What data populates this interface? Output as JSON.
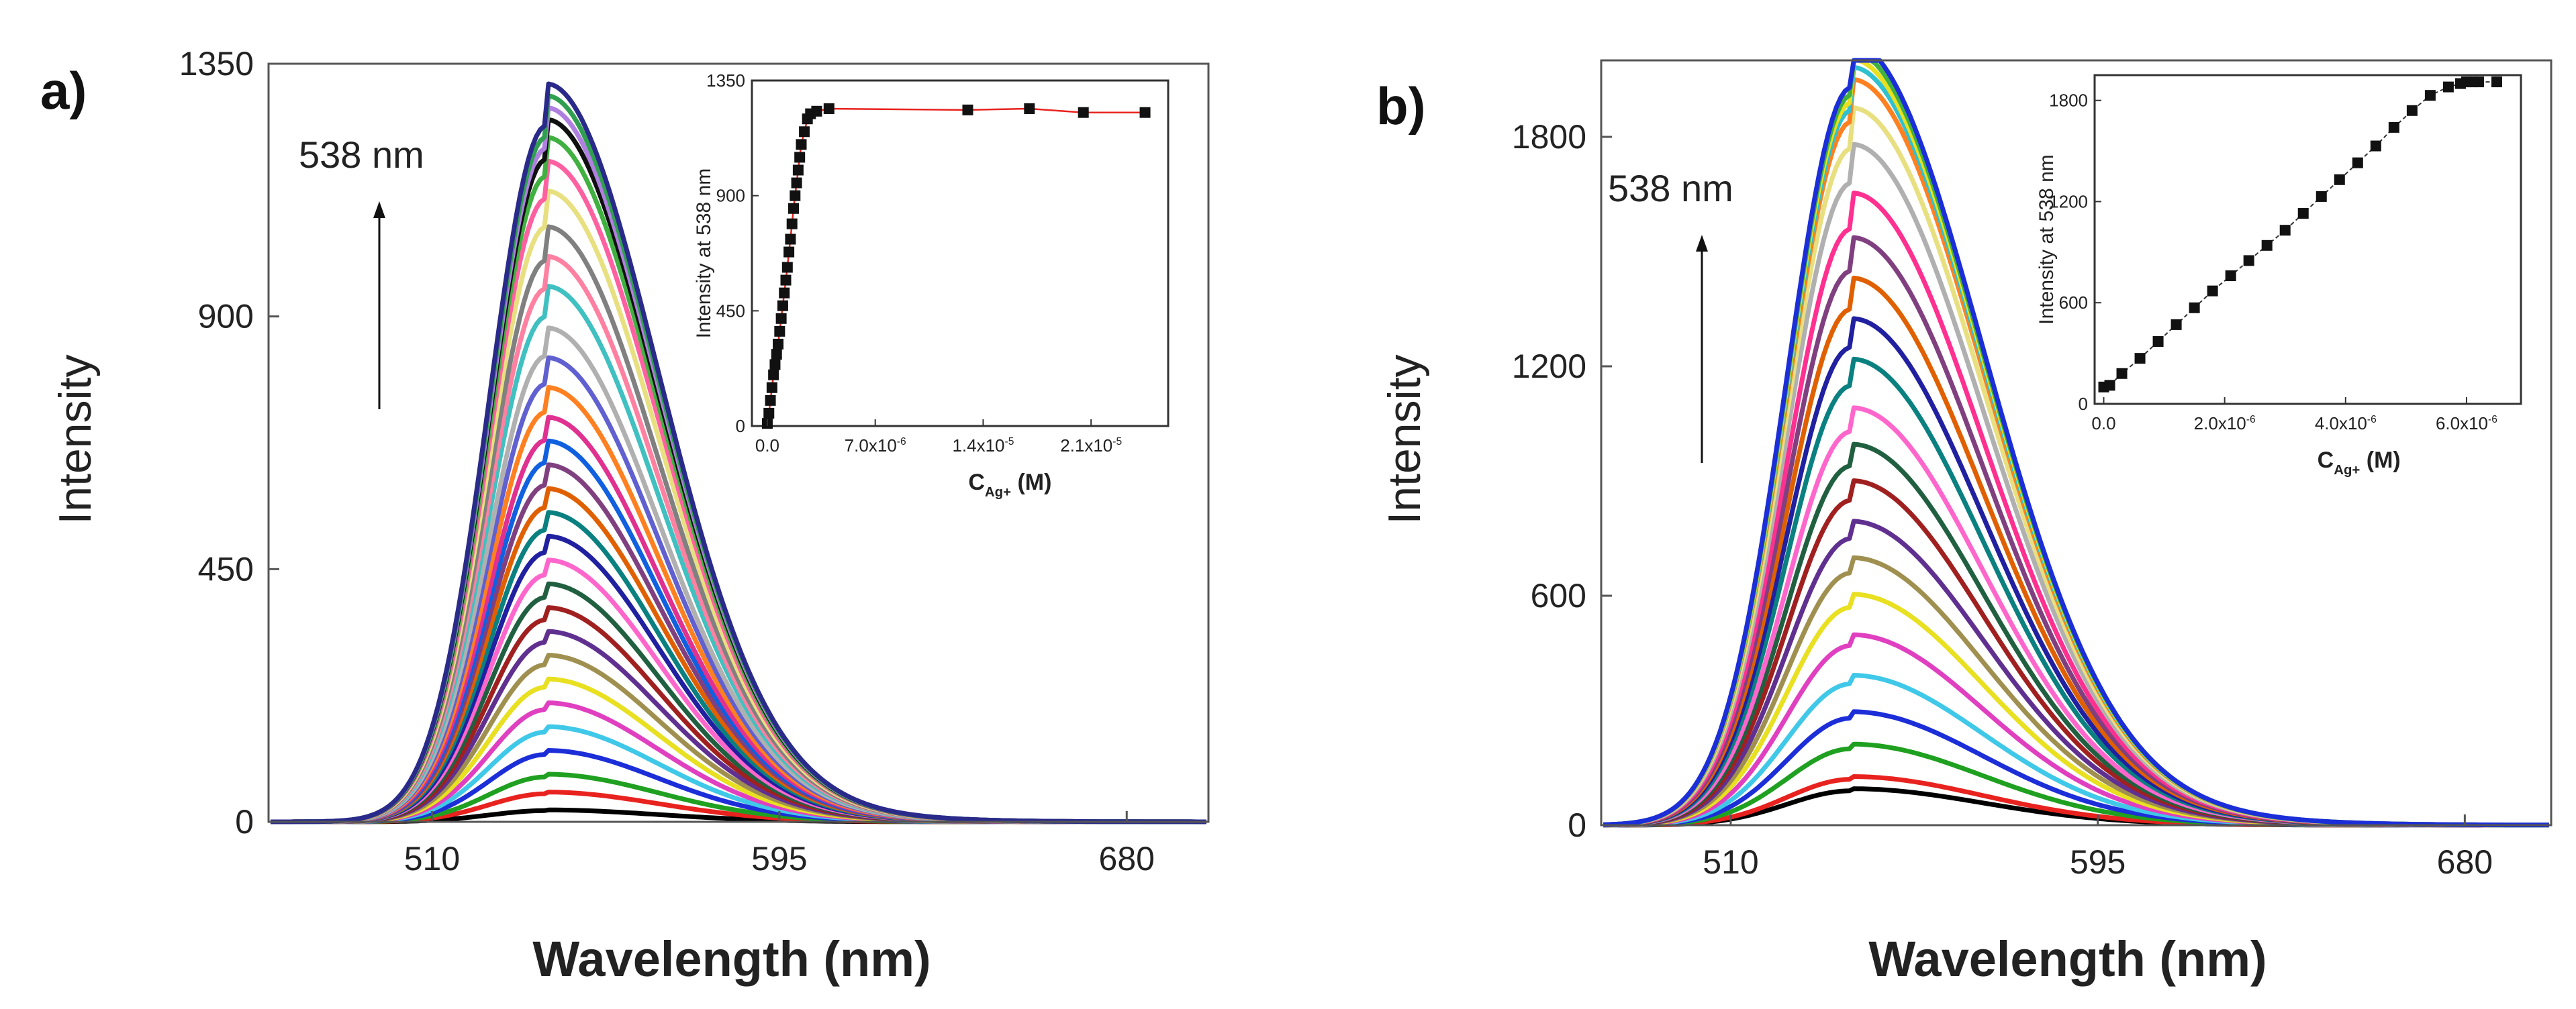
{
  "chart_data": [
    {
      "type": "line",
      "panel_label": "a)",
      "xlabel": "Wavelength (nm)",
      "ylabel": "Intensity",
      "xlim": [
        470,
        700
      ],
      "ylim": [
        0,
        1350
      ],
      "x_ticks": [
        "510",
        "595",
        "680"
      ],
      "y_ticks": [
        "0",
        "450",
        "900",
        "1350"
      ],
      "annotation": {
        "text": "538 nm",
        "arrow": "up"
      },
      "peak_wavelength": 538,
      "series_peak_intensities": [
        20,
        50,
        80,
        120,
        160,
        200,
        240,
        280,
        320,
        360,
        400,
        440,
        480,
        520,
        560,
        600,
        640,
        680,
        730,
        780,
        830,
        900,
        950,
        1000,
        1060,
        1110,
        1150,
        1180,
        1200,
        1220,
        1240
      ],
      "series_colors": [
        "#000000",
        "#e8231f",
        "#20a020",
        "#1c2ed8",
        "#40c8e8",
        "#e040c0",
        "#e8e020",
        "#a09050",
        "#603090",
        "#a02020",
        "#206040",
        "#ff66cc",
        "#2020a0",
        "#0a8080",
        "#e06000",
        "#804080",
        "#1060e0",
        "#e03090",
        "#ff8020",
        "#6060d0",
        "#b0b0b0",
        "#40c0c0",
        "#ff80a0",
        "#808080",
        "#e8e080",
        "#ff60a0",
        "#40b040",
        "#101010",
        "#b080e0",
        "#30a050",
        "#2a2a8a"
      ],
      "inset": {
        "type": "scatter",
        "xlabel": "C",
        "xlabel_subscript": "Ag+",
        "xlabel_unit": " (M)",
        "ylabel": "Intensity at 538 nm",
        "xlim": [
          -1e-06,
          2.6e-05
        ],
        "ylim": [
          0,
          1350
        ],
        "x_ticks": [
          {
            "value": 0,
            "label": "0.0"
          },
          {
            "value": 7e-06,
            "label": "7.0x10",
            "exp": "-6"
          },
          {
            "value": 1.4e-05,
            "label": "1.4x10",
            "exp": "-5"
          },
          {
            "value": 2.1e-05,
            "label": "2.1x10",
            "exp": "-5"
          }
        ],
        "y_ticks": [
          "0",
          "450",
          "900",
          "1350"
        ],
        "x": [
          0,
          1e-07,
          2e-07,
          3e-07,
          4e-07,
          5e-07,
          6e-07,
          7e-07,
          8e-07,
          9e-07,
          1e-06,
          1.1e-06,
          1.2e-06,
          1.3e-06,
          1.4e-06,
          1.5e-06,
          1.6e-06,
          1.7e-06,
          1.8e-06,
          1.9e-06,
          2e-06,
          2.1e-06,
          2.2e-06,
          2.4e-06,
          2.6e-06,
          2.8e-06,
          3.2e-06,
          4e-06,
          1.3e-05,
          1.7e-05,
          2.05e-05,
          2.45e-05
        ],
        "y": [
          10,
          50,
          100,
          150,
          200,
          240,
          280,
          320,
          370,
          420,
          470,
          520,
          570,
          620,
          680,
          730,
          790,
          850,
          900,
          950,
          1000,
          1050,
          1100,
          1150,
          1200,
          1220,
          1230,
          1240,
          1235,
          1240,
          1225,
          1225
        ],
        "line_color": "#e8231f"
      }
    },
    {
      "type": "line",
      "panel_label": "b)",
      "xlabel": "Wavelength (nm)",
      "ylabel": "Intensity",
      "xlim": [
        480,
        700
      ],
      "ylim": [
        0,
        2000
      ],
      "x_ticks": [
        "510",
        "595",
        "680"
      ],
      "y_ticks": [
        "0",
        "600",
        "1200",
        "1800"
      ],
      "annotation": {
        "text": "538 nm",
        "arrow": "up"
      },
      "peak_wavelength": 538,
      "series_peak_intensities": [
        90,
        120,
        200,
        280,
        370,
        470,
        570,
        660,
        750,
        850,
        940,
        1030,
        1150,
        1250,
        1350,
        1450,
        1560,
        1680,
        1770,
        1840,
        1870,
        1890,
        1910,
        1930
      ],
      "series_colors": [
        "#000000",
        "#e8231f",
        "#20a020",
        "#1c2ed8",
        "#40c8e8",
        "#e040c0",
        "#e8e020",
        "#a09050",
        "#603090",
        "#a02020",
        "#206040",
        "#ff66cc",
        "#0a8080",
        "#2020a0",
        "#e06000",
        "#804080",
        "#ff3090",
        "#b0b0b0",
        "#e8e080",
        "#ff8020",
        "#30c0d0",
        "#e8e020",
        "#40b040",
        "#1c2ed8"
      ],
      "inset": {
        "type": "scatter",
        "xlabel": "C",
        "xlabel_subscript": "Ag+",
        "xlabel_unit": " (M)",
        "ylabel": "Intensity at 538 nm",
        "xlim": [
          -1.5e-07,
          6.9e-06
        ],
        "ylim": [
          0,
          1950
        ],
        "x_ticks": [
          {
            "value": 0,
            "label": "0.0"
          },
          {
            "value": 2e-06,
            "label": "2.0x10",
            "exp": "-6"
          },
          {
            "value": 4e-06,
            "label": "4.0x10",
            "exp": "-6"
          },
          {
            "value": 6e-06,
            "label": "6.0x10",
            "exp": "-6"
          }
        ],
        "y_ticks": [
          "0",
          "600",
          "1200",
          "1800"
        ],
        "x": [
          0,
          1e-07,
          3e-07,
          6e-07,
          9e-07,
          1.2e-06,
          1.5e-06,
          1.8e-06,
          2.1e-06,
          2.4e-06,
          2.7e-06,
          3e-06,
          3.3e-06,
          3.6e-06,
          3.9e-06,
          4.2e-06,
          4.5e-06,
          4.8e-06,
          5.1e-06,
          5.4e-06,
          5.7e-06,
          5.9e-06,
          6e-06,
          6.1e-06,
          6.2e-06,
          6.5e-06
        ],
        "y": [
          100,
          110,
          180,
          270,
          370,
          470,
          570,
          670,
          760,
          850,
          940,
          1030,
          1130,
          1230,
          1330,
          1430,
          1530,
          1640,
          1740,
          1830,
          1880,
          1900,
          1910,
          1910,
          1910,
          1910
        ],
        "line_color": "#333333"
      }
    }
  ]
}
